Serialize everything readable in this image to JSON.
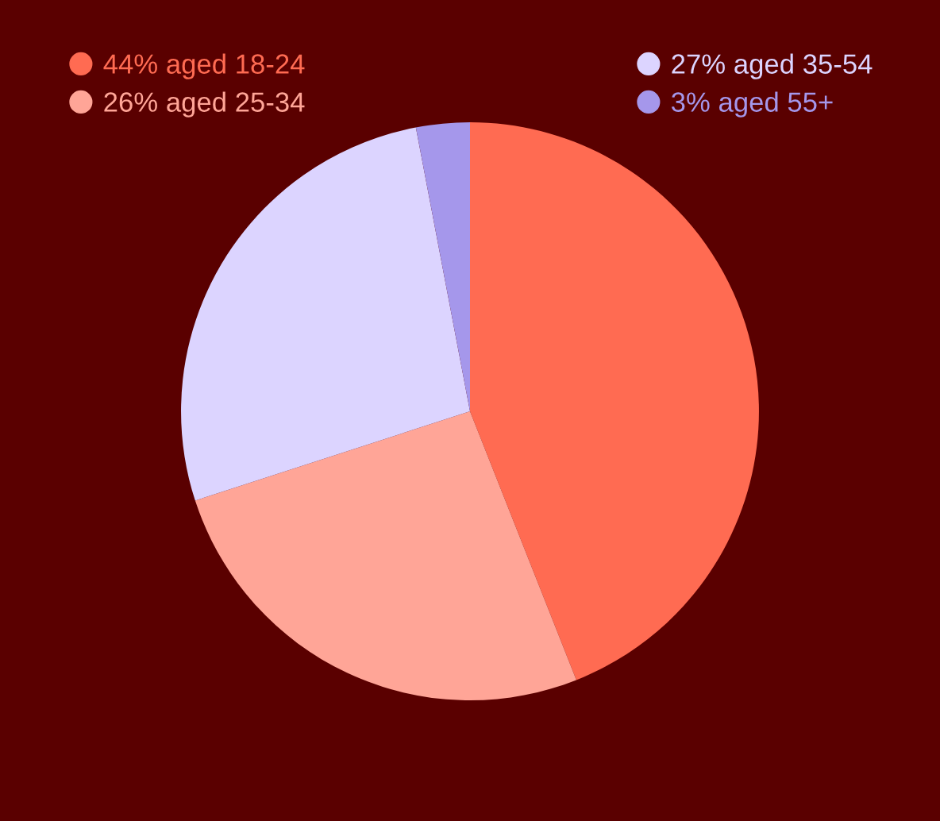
{
  "chart_data": {
    "type": "pie",
    "categories": [
      "44% aged 18-24",
      "26% aged 25-34",
      "27% aged 35-54",
      "3% aged 55+"
    ],
    "values": [
      44,
      26,
      27,
      3
    ],
    "colors": [
      "#ff6b52",
      "#ffa597",
      "#dcd4ff",
      "#a597eb"
    ],
    "legend": "top"
  }
}
